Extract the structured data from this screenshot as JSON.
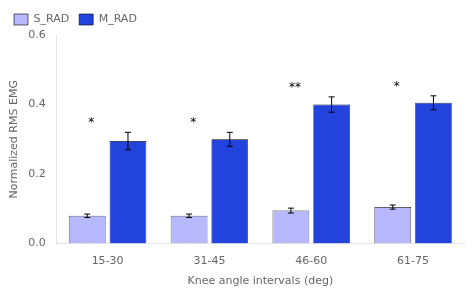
{
  "chart_data": {
    "type": "bar",
    "categories": [
      "15-30",
      "31-45",
      "46-60",
      "61-75"
    ],
    "series": [
      {
        "name": "S_RAD",
        "color": "#b8b8ff",
        "values": [
          0.08,
          0.08,
          0.095,
          0.105
        ],
        "errors": [
          0.005,
          0.005,
          0.007,
          0.006
        ]
      },
      {
        "name": "M_RAD",
        "color": "#2244dd",
        "values": [
          0.295,
          0.3,
          0.4,
          0.405
        ],
        "errors": [
          0.025,
          0.02,
          0.022,
          0.02
        ]
      }
    ],
    "annotations": [
      "*",
      "*",
      "**",
      "*"
    ],
    "xlabel": "Knee angle intervals (deg)",
    "ylabel": "Normalized RMS EMG",
    "ylim": [
      0,
      0.6
    ],
    "yticks": [
      {
        "value": 0,
        "label": "0.0"
      },
      0.2,
      0.4,
      0.6
    ],
    "grid": false,
    "legend": "upper left"
  }
}
